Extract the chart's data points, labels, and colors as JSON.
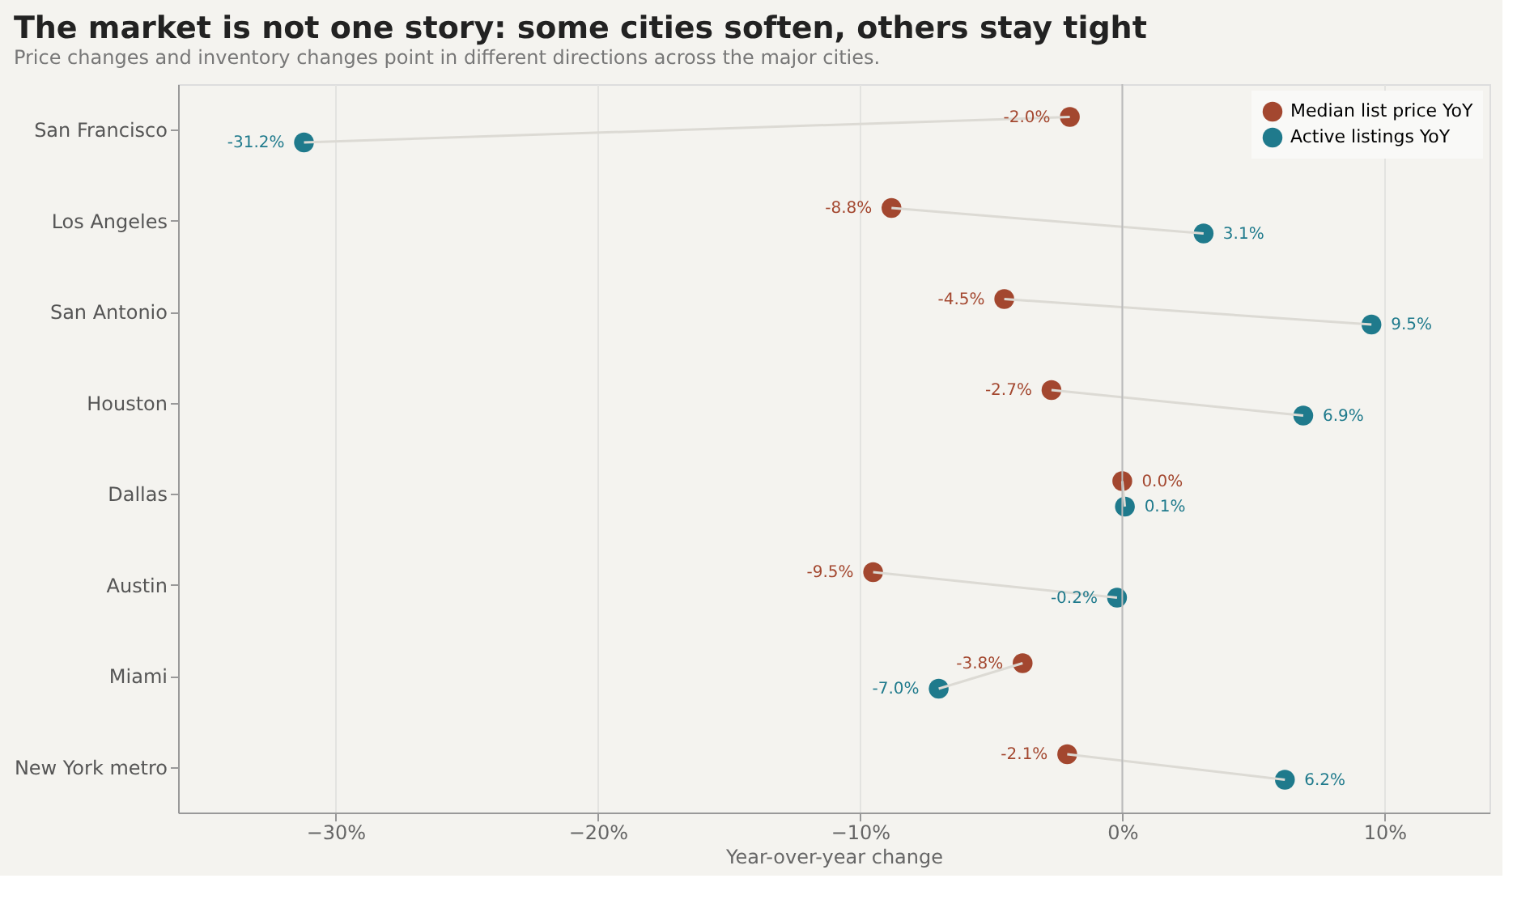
{
  "chart_data": {
    "type": "scatter",
    "orientation": "horizontal",
    "title": "The market is not one story: some cities soften, others stay tight",
    "subtitle": "Price changes and inventory changes point in different directions across the major cities.",
    "xlabel": "Year-over-year change",
    "categories": [
      "San Francisco",
      "Los Angeles",
      "San Antonio",
      "Houston",
      "Dallas",
      "Austin",
      "Miami",
      "New York metro"
    ],
    "series": [
      {
        "name": "Median list price YoY",
        "color": "#a3472f",
        "values": [
          -2.0,
          -8.8,
          -4.5,
          -2.7,
          0.0,
          -9.5,
          -3.8,
          -2.1
        ],
        "value_labels": [
          "-2.0%",
          "-8.8%",
          "-4.5%",
          "-2.7%",
          "0.0%",
          "-9.5%",
          "-3.8%",
          "-2.1%"
        ]
      },
      {
        "name": "Active listings YoY",
        "color": "#1f7a8c",
        "values": [
          -31.2,
          3.1,
          9.5,
          6.9,
          0.1,
          -0.2,
          -7.0,
          6.2
        ],
        "value_labels": [
          "-31.2%",
          "3.1%",
          "9.5%",
          "6.9%",
          "0.1%",
          "-0.2%",
          "-7.0%",
          "6.2%"
        ]
      }
    ],
    "xlim": [
      -36,
      14
    ],
    "xticks": [
      {
        "value": -30,
        "label": "−30%"
      },
      {
        "value": -20,
        "label": "−20%"
      },
      {
        "value": -10,
        "label": "−10%"
      },
      {
        "value": 0,
        "label": "0%"
      },
      {
        "value": 10,
        "label": "10%"
      }
    ],
    "ref_lines": [
      {
        "axis": "x",
        "value": 0,
        "color": "#bbbbbb"
      }
    ],
    "grid": "x",
    "legend": "top right",
    "marker": "circle"
  }
}
